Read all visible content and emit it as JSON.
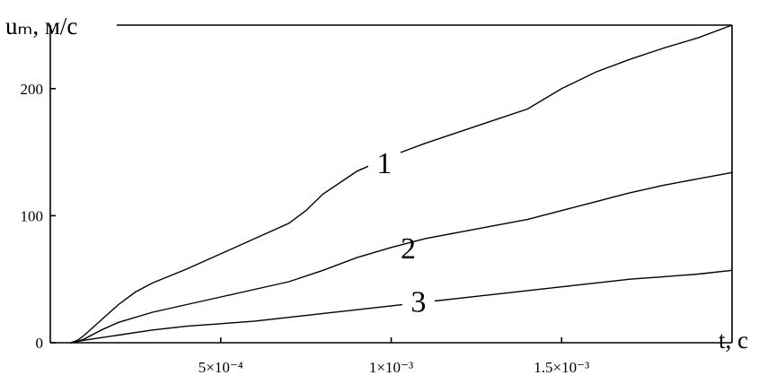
{
  "chart_data": {
    "type": "line",
    "title": "",
    "ylabel": "uₘ, м/с",
    "xlabel": "t, c",
    "xlim": [
      0,
      0.002
    ],
    "ylim": [
      0,
      250
    ],
    "grid": false,
    "legend": "none",
    "x_ticks": [
      {
        "value": 0.0005,
        "label": "5×10⁻⁴"
      },
      {
        "value": 0.001,
        "label": "1×10⁻³"
      },
      {
        "value": 0.0015,
        "label": "1.5×10⁻³"
      }
    ],
    "y_ticks": [
      {
        "value": 0,
        "label": "0"
      },
      {
        "value": 100,
        "label": "100"
      },
      {
        "value": 200,
        "label": "200"
      }
    ],
    "series": [
      {
        "name": "1",
        "label_at": {
          "x": 0.00098,
          "y": 142
        },
        "x": [
          6e-05,
          8e-05,
          0.0001,
          0.00015,
          0.0002,
          0.00025,
          0.0003,
          0.0004,
          0.0005,
          0.0006,
          0.0007,
          0.00075,
          0.0008,
          0.0009,
          0.001,
          0.0011,
          0.0012,
          0.0013,
          0.0014,
          0.0015,
          0.0016,
          0.0017,
          0.0018,
          0.0019,
          0.002
        ],
        "y": [
          0,
          2,
          6,
          18,
          30,
          40,
          47,
          58,
          70,
          82,
          94,
          104,
          117,
          135,
          147,
          157,
          166,
          175,
          184,
          200,
          213,
          223,
          232,
          240,
          250
        ]
      },
      {
        "name": "2",
        "label_at": {
          "x": 0.00105,
          "y": 75
        },
        "x": [
          6e-05,
          8e-05,
          0.0001,
          0.00015,
          0.0002,
          0.0003,
          0.0004,
          0.0005,
          0.0006,
          0.0007,
          0.0008,
          0.0009,
          0.001,
          0.0011,
          0.0012,
          0.0013,
          0.0014,
          0.0015,
          0.0016,
          0.0017,
          0.0018,
          0.0019,
          0.002
        ],
        "y": [
          0,
          1,
          3,
          10,
          16,
          24,
          30,
          36,
          42,
          48,
          57,
          67,
          75,
          82,
          87,
          92,
          97,
          104,
          111,
          118,
          124,
          129,
          134
        ]
      },
      {
        "name": "3",
        "label_at": {
          "x": 0.00108,
          "y": 33
        },
        "x": [
          6e-05,
          8e-05,
          0.0001,
          0.00015,
          0.0002,
          0.0003,
          0.0004,
          0.0005,
          0.0006,
          0.0007,
          0.0008,
          0.0009,
          0.001,
          0.0011,
          0.0012,
          0.0013,
          0.0014,
          0.0015,
          0.0016,
          0.0017,
          0.0018,
          0.0019,
          0.002
        ],
        "y": [
          0,
          1,
          2,
          4,
          6,
          10,
          13,
          15,
          17,
          20,
          23,
          26,
          29,
          32,
          35,
          38,
          41,
          44,
          47,
          50,
          52,
          54,
          57
        ]
      }
    ]
  }
}
